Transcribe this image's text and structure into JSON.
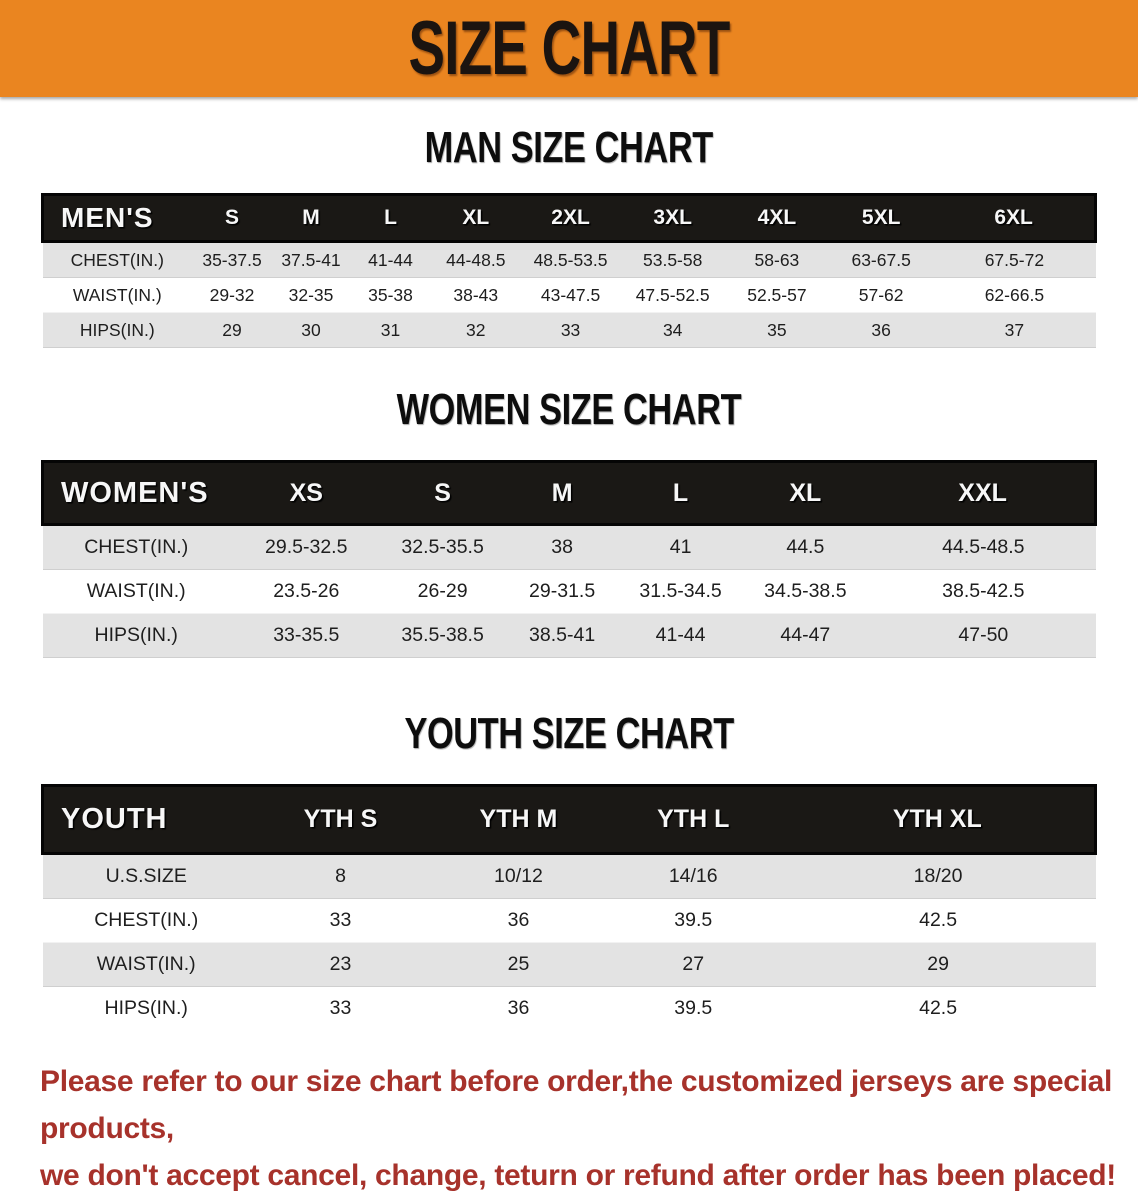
{
  "banner": {
    "title": "SIZE CHART",
    "bg_color": "#EA8520",
    "text_color": "#1b1410"
  },
  "sections": [
    {
      "id": "men",
      "title": "MAN SIZE CHART",
      "corner_label": "MEN'S",
      "columns": [
        "S",
        "M",
        "L",
        "XL",
        "2XL",
        "3XL",
        "4XL",
        "5XL",
        "6XL"
      ],
      "rows": [
        {
          "label": "CHEST(IN.)",
          "values": [
            "35-37.5",
            "37.5-41",
            "41-44",
            "44-48.5",
            "48.5-53.5",
            "53.5-58",
            "58-63",
            "63-67.5",
            "67.5-72"
          ]
        },
        {
          "label": "WAIST(IN.)",
          "values": [
            "29-32",
            "32-35",
            "35-38",
            "38-43",
            "43-47.5",
            "47.5-52.5",
            "52.5-57",
            "57-62",
            "62-66.5"
          ]
        },
        {
          "label": "HIPS(IN.)",
          "values": [
            "29",
            "30",
            "31",
            "32",
            "33",
            "34",
            "35",
            "36",
            "37"
          ]
        }
      ]
    },
    {
      "id": "women",
      "title": "WOMEN SIZE CHART",
      "corner_label": "WOMEN'S",
      "columns": [
        "XS",
        "S",
        "M",
        "L",
        "XL",
        "XXL"
      ],
      "rows": [
        {
          "label": "CHEST(IN.)",
          "values": [
            "29.5-32.5",
            "32.5-35.5",
            "38",
            "41",
            "44.5",
            "44.5-48.5"
          ]
        },
        {
          "label": "WAIST(IN.)",
          "values": [
            "23.5-26",
            "26-29",
            "29-31.5",
            "31.5-34.5",
            "34.5-38.5",
            "38.5-42.5"
          ]
        },
        {
          "label": "HIPS(IN.)",
          "values": [
            "33-35.5",
            "35.5-38.5",
            "38.5-41",
            "41-44",
            "44-47",
            "47-50"
          ]
        }
      ]
    },
    {
      "id": "youth",
      "title": "YOUTH SIZE CHART",
      "corner_label": "YOUTH",
      "columns": [
        "YTH S",
        "YTH M",
        "YTH L",
        "YTH XL"
      ],
      "rows": [
        {
          "label": "U.S.SIZE",
          "values": [
            "8",
            "10/12",
            "14/16",
            "18/20"
          ]
        },
        {
          "label": "CHEST(IN.)",
          "values": [
            "33",
            "36",
            "39.5",
            "42.5"
          ]
        },
        {
          "label": "WAIST(IN.)",
          "values": [
            "23",
            "25",
            "27",
            "29"
          ]
        },
        {
          "label": "HIPS(IN.)",
          "values": [
            "33",
            "36",
            "39.5",
            "42.5"
          ]
        }
      ]
    }
  ],
  "disclaimer": {
    "color": "#A7322B",
    "lines": [
      "Please refer to our size chart before order,the customized jerseys are special products,",
      "we don't accept cancel, change, teturn or refund after order has been placed!"
    ]
  }
}
